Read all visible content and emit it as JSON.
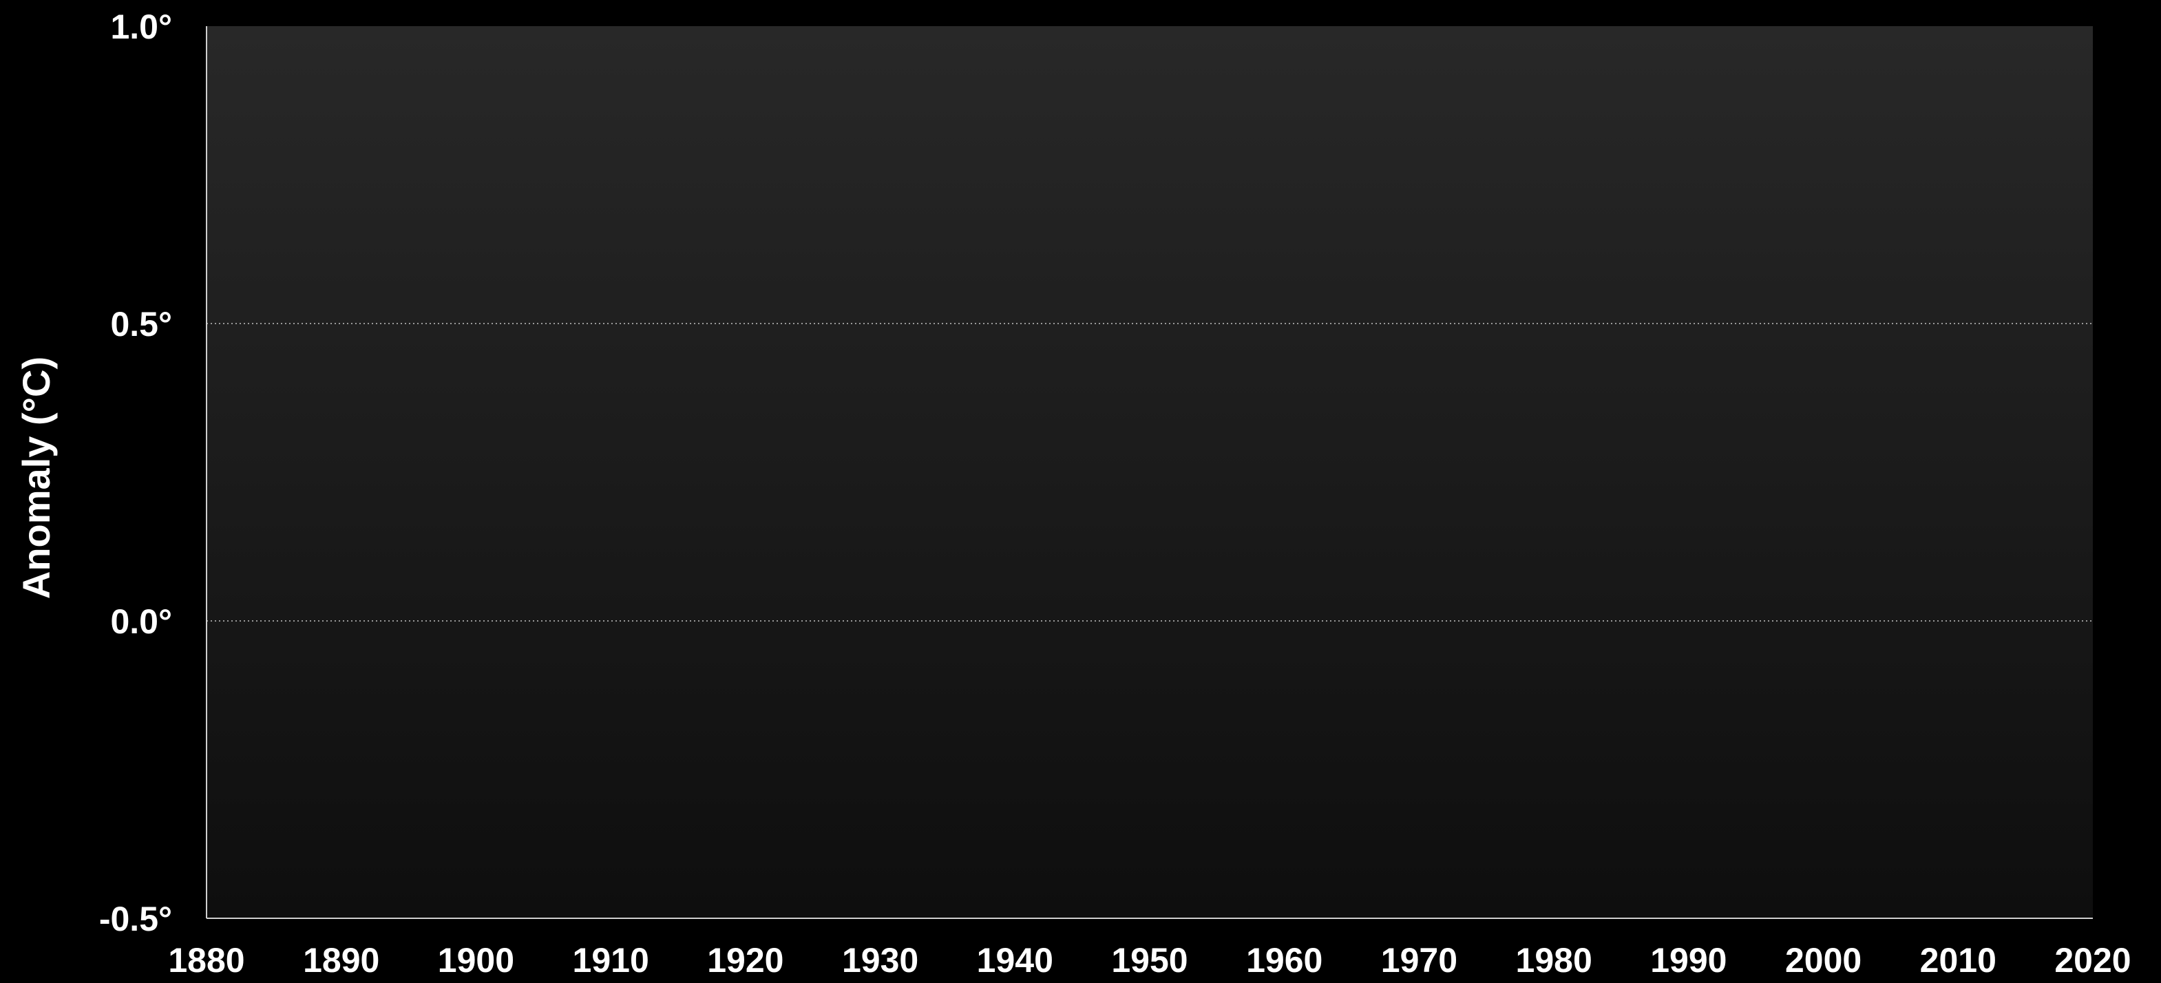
{
  "chart_data": {
    "type": "line",
    "title": "",
    "xlabel": "",
    "ylabel": "Anomaly (°C)",
    "xlim": [
      1880,
      2020
    ],
    "ylim": [
      -0.5,
      1.0
    ],
    "x_ticks": [
      "1880",
      "1890",
      "1900",
      "1910",
      "1920",
      "1930",
      "1940",
      "1950",
      "1960",
      "1970",
      "1980",
      "1990",
      "2000",
      "2010",
      "2020"
    ],
    "y_ticks": [
      {
        "value": 1.0,
        "label": "1.0°"
      },
      {
        "value": 0.5,
        "label": "0.5°"
      },
      {
        "value": 0.0,
        "label": "0.0°"
      },
      {
        "value": -0.5,
        "label": "-0.5°"
      }
    ],
    "grid": "horizontal dotted at 0.5 and 0.0",
    "legend": "none",
    "series": []
  },
  "colors": {
    "background": "#000000",
    "plot_top": "#282828",
    "plot_bottom": "#0e0e0e",
    "text": "#ffffff",
    "axis": "#cfcfcf",
    "grid": "#9a9a9a"
  }
}
